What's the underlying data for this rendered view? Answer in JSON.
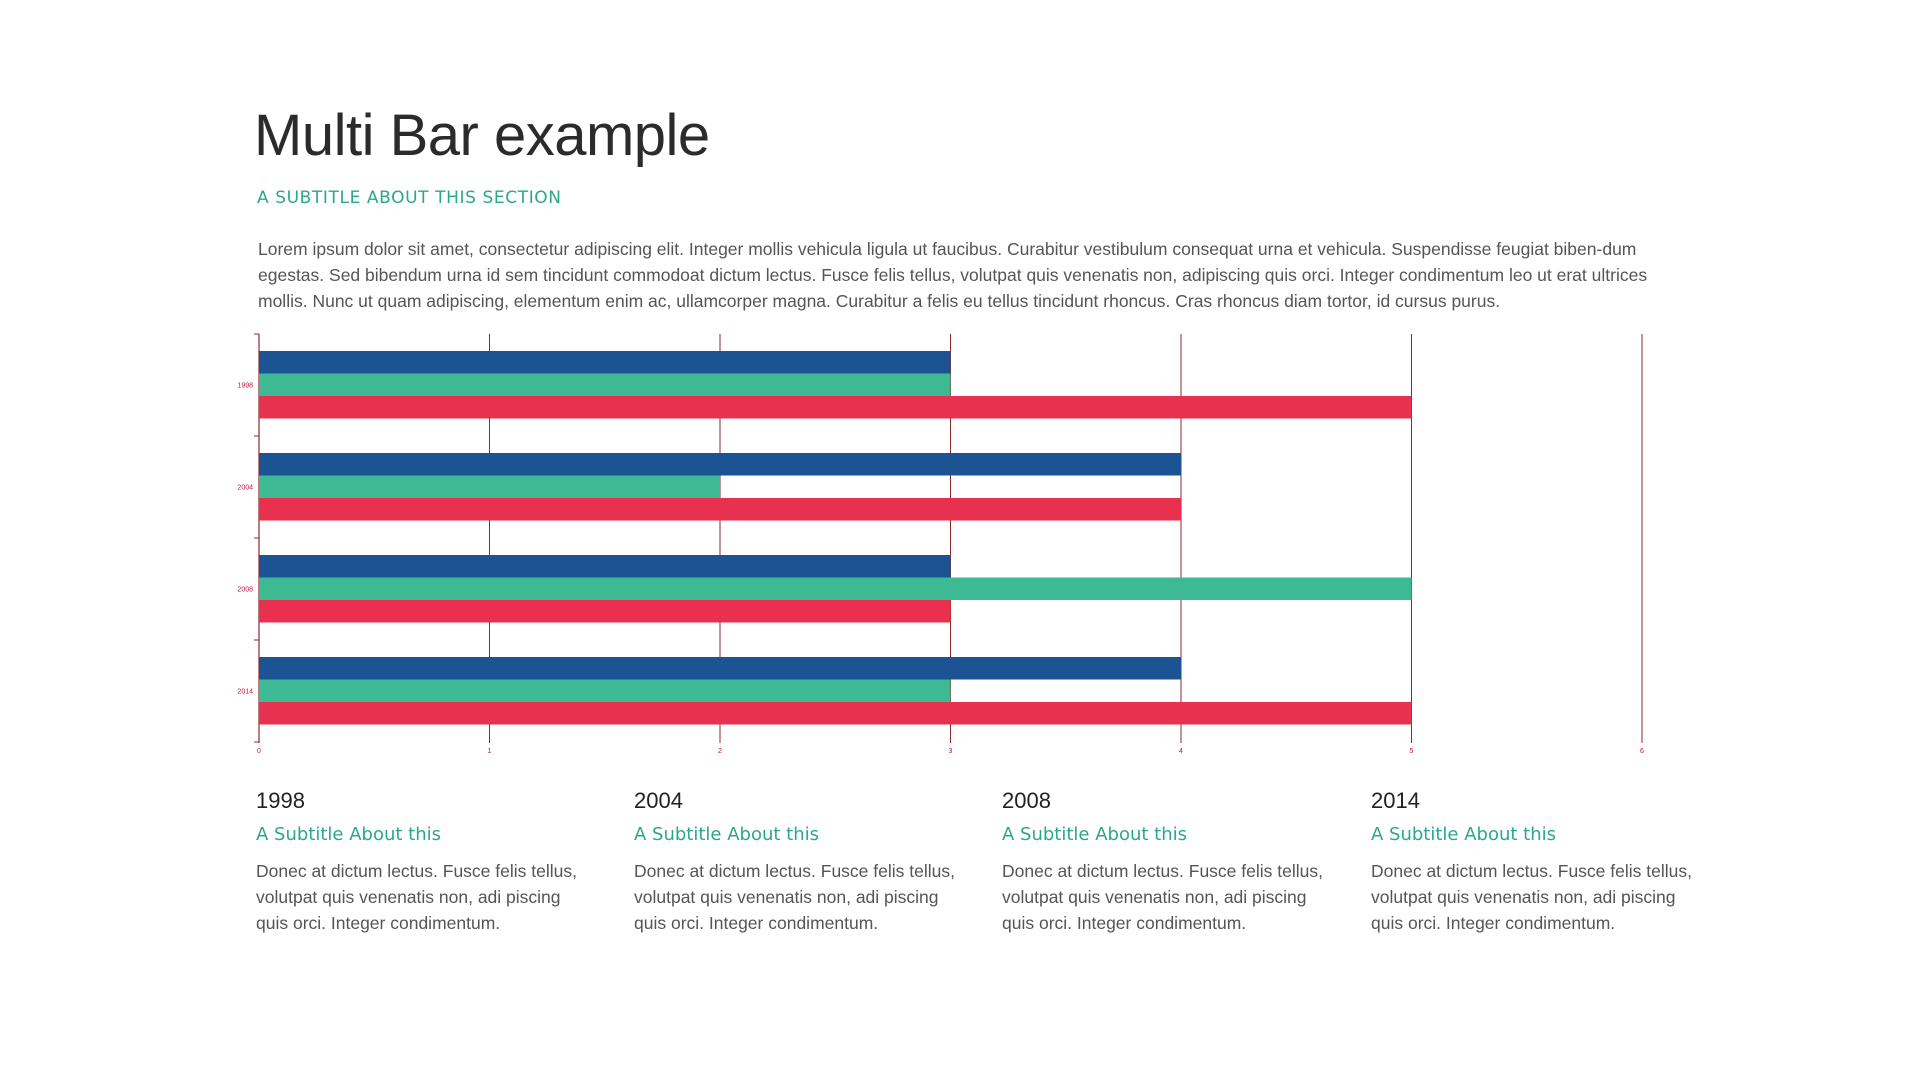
{
  "title": "Multi Bar example",
  "subtitle": "A SUBTITLE ABOUT THIS SECTION",
  "intro": "Lorem ipsum dolor sit amet, consectetur adipiscing elit. Integer mollis vehicula ligula ut faucibus. Curabitur vestibulum consequat urna et vehicula. Suspendisse feugiat biben-dum egestas. Sed bibendum urna id sem tincidunt commodoat dictum lectus. Fusce felis tellus, volutpat quis venenatis non, adipiscing quis orci. Integer condimentum leo ut erat ultrices mollis. Nunc ut quam adipiscing, elementum enim ac, ullamcorper magna. Curabitur a felis eu tellus tincidunt rhoncus. Cras rhoncus diam tortor, id cursus purus.",
  "chart_data": {
    "type": "bar",
    "orientation": "horizontal",
    "categories": [
      "1998",
      "2004",
      "2008",
      "2014"
    ],
    "series": [
      {
        "values": [
          3,
          4,
          3,
          4
        ],
        "color": "#1c5493"
      },
      {
        "values": [
          3,
          2,
          5,
          3
        ],
        "color": "#3dba93"
      },
      {
        "values": [
          5,
          4,
          3,
          5
        ],
        "color": "#e8304f"
      }
    ],
    "x_ticks": [
      "0",
      "1",
      "2",
      "3",
      "4",
      "5",
      "6"
    ],
    "xlim": [
      0,
      6
    ],
    "grid": true,
    "gridline_color": "#8b2a2a",
    "tick_label_color": "#c0143c",
    "legend": "none"
  },
  "columns": [
    {
      "year": "1998",
      "subtitle": "A Subtitle About this",
      "text": "Donec at dictum lectus. Fusce felis tellus, volutpat quis venenatis non, adi piscing quis orci. Integer condimentum."
    },
    {
      "year": "2004",
      "subtitle": "A Subtitle About this",
      "text": "Donec at dictum lectus. Fusce felis tellus, volutpat quis venenatis non, adi piscing quis orci. Integer condimentum."
    },
    {
      "year": "2008",
      "subtitle": "A Subtitle About this",
      "text": "Donec at dictum lectus. Fusce felis tellus, volutpat quis venenatis non, adi piscing quis orci. Integer condimentum."
    },
    {
      "year": "2014",
      "subtitle": "A Subtitle About this",
      "text": "Donec at dictum lectus. Fusce felis tellus, volutpat quis venenatis non, adi piscing quis orci. Integer condimentum."
    }
  ]
}
